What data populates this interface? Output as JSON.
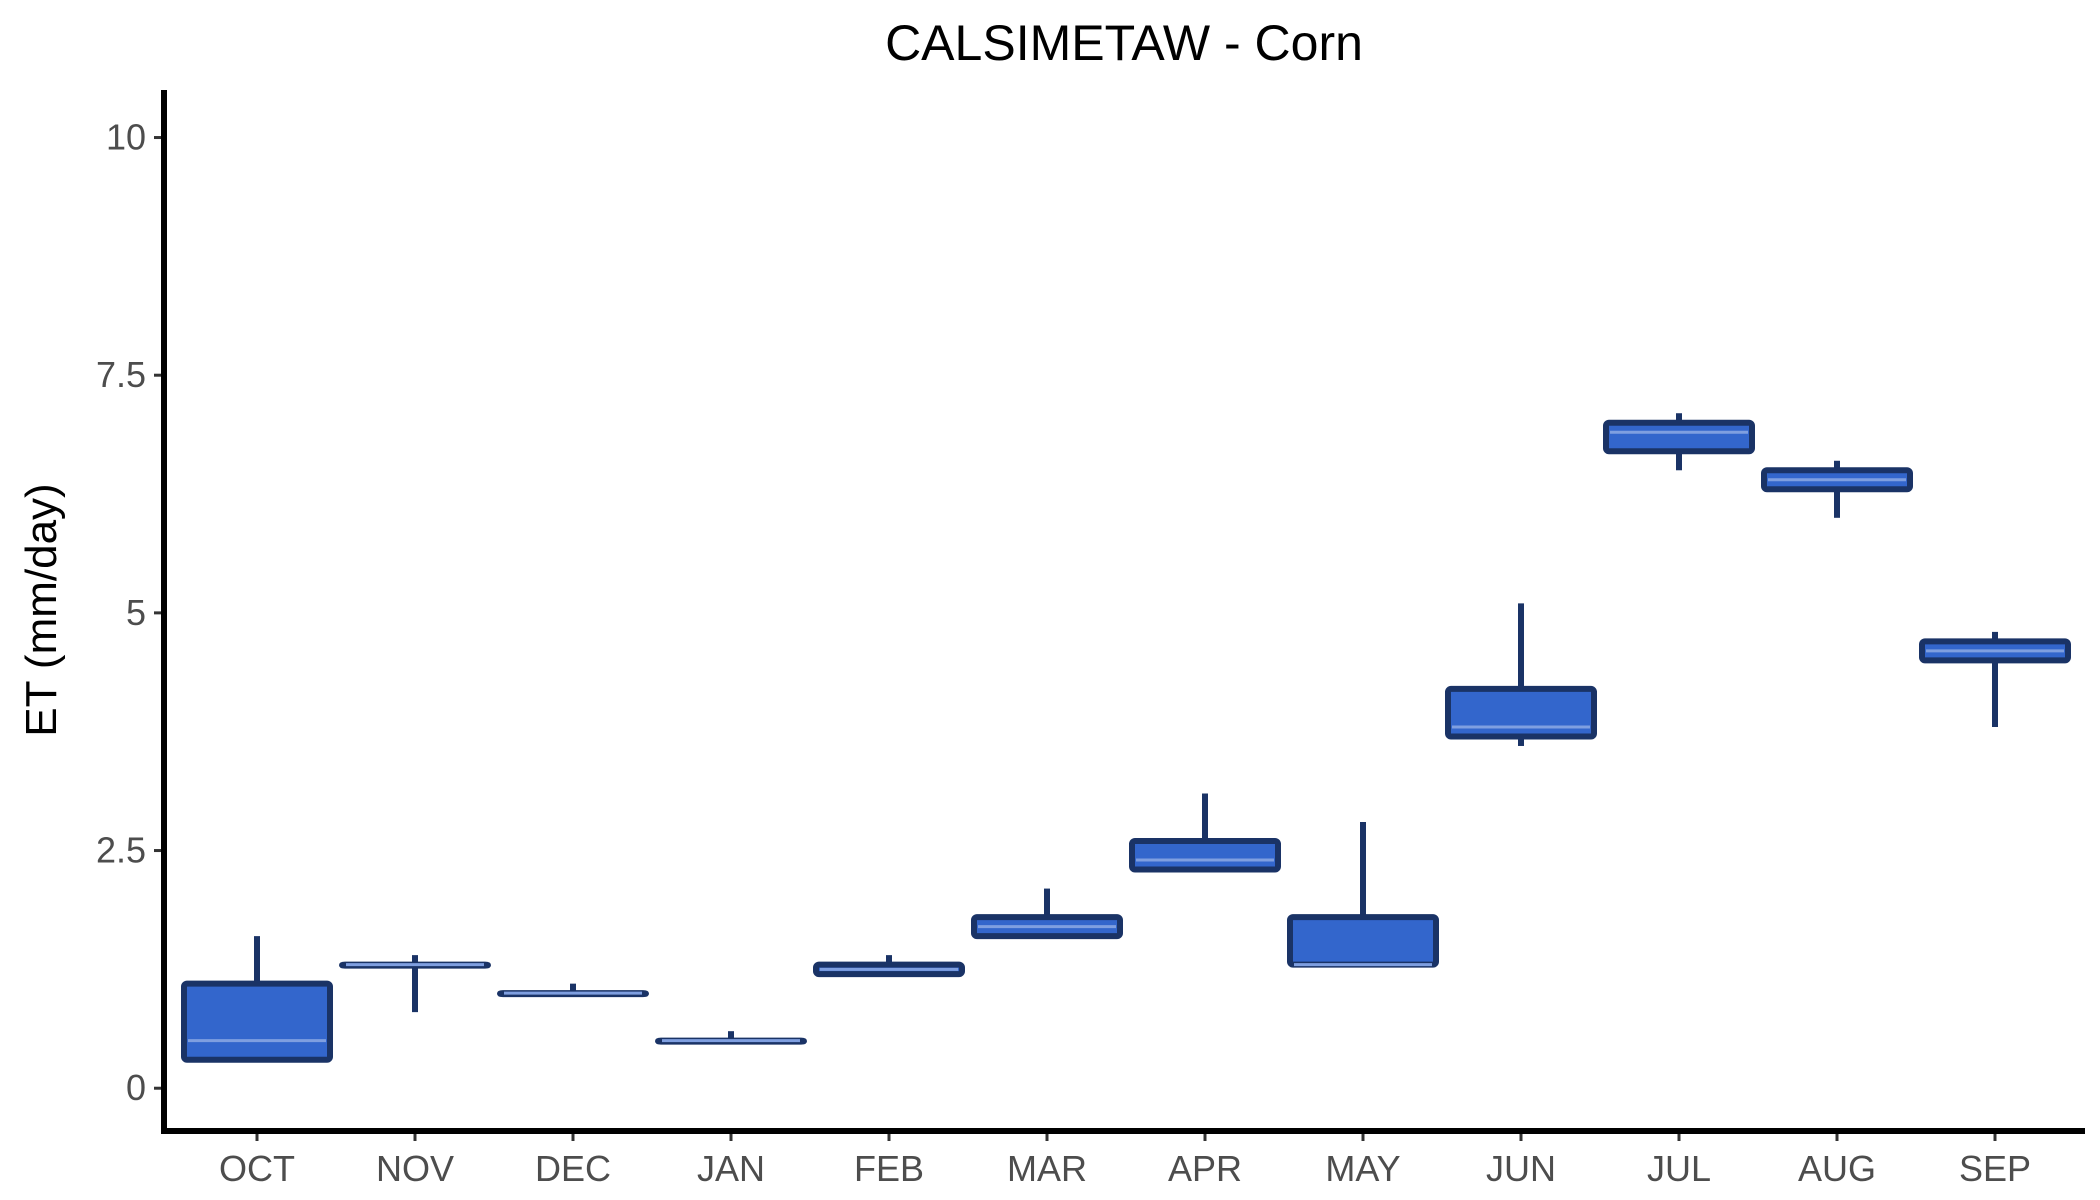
{
  "chart_data": {
    "type": "boxplot",
    "title": "CALSIMETAW - Corn",
    "xlabel": "",
    "ylabel": "ET (mm/day)",
    "ylim": [
      -0.45,
      10.5
    ],
    "yticks": [
      0,
      2.5,
      5,
      7.5,
      10
    ],
    "ytick_labels": [
      "0",
      "2.5",
      "5",
      "7.5",
      "10"
    ],
    "grid": false,
    "legend": "none",
    "colors": {
      "box_fill": "#3366cc",
      "box_stroke": "#1a3366",
      "median": "#7f9fe0"
    },
    "categories": [
      "OCT",
      "NOV",
      "DEC",
      "JAN",
      "FEB",
      "MAR",
      "APR",
      "MAY",
      "JUN",
      "JUL",
      "AUG",
      "SEP"
    ],
    "boxes": [
      {
        "month": "OCT",
        "min": 0.3,
        "q1": 0.3,
        "median": 0.5,
        "q3": 1.1,
        "max": 1.6
      },
      {
        "month": "NOV",
        "min": 0.8,
        "q1": 1.3,
        "median": 1.3,
        "q3": 1.3,
        "max": 1.4
      },
      {
        "month": "DEC",
        "min": 1.0,
        "q1": 1.0,
        "median": 1.0,
        "q3": 1.0,
        "max": 1.1
      },
      {
        "month": "JAN",
        "min": 0.5,
        "q1": 0.5,
        "median": 0.5,
        "q3": 0.5,
        "max": 0.6
      },
      {
        "month": "FEB",
        "min": 1.2,
        "q1": 1.2,
        "median": 1.25,
        "q3": 1.3,
        "max": 1.4
      },
      {
        "month": "MAR",
        "min": 1.6,
        "q1": 1.6,
        "median": 1.7,
        "q3": 1.8,
        "max": 2.1
      },
      {
        "month": "APR",
        "min": 2.3,
        "q1": 2.3,
        "median": 2.4,
        "q3": 2.6,
        "max": 3.1
      },
      {
        "month": "MAY",
        "min": 1.3,
        "q1": 1.3,
        "median": 1.3,
        "q3": 1.8,
        "max": 2.8
      },
      {
        "month": "JUN",
        "min": 3.6,
        "q1": 3.7,
        "median": 3.8,
        "q3": 4.2,
        "max": 5.1
      },
      {
        "month": "JUL",
        "min": 6.5,
        "q1": 6.7,
        "median": 6.9,
        "q3": 7.0,
        "max": 7.1
      },
      {
        "month": "AUG",
        "min": 6.0,
        "q1": 6.3,
        "median": 6.4,
        "q3": 6.5,
        "max": 6.6
      },
      {
        "month": "SEP",
        "min": 3.8,
        "q1": 4.5,
        "median": 4.6,
        "q3": 4.7,
        "max": 4.8
      }
    ]
  }
}
